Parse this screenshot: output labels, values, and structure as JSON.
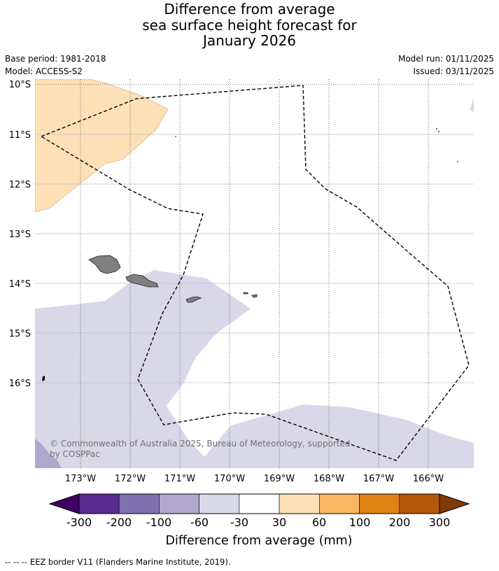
{
  "title": {
    "line1": "Difference from average",
    "line2": "sea surface height forecast for",
    "line3": "January 2026"
  },
  "meta": {
    "base_period": "Base period: 1981-2018",
    "model": "Model: ACCESS-S2",
    "model_run": "Model run: 01/11/2025",
    "issued": "Issued: 03/11/2025"
  },
  "map": {
    "lat_labels": [
      "10°S",
      "11°S",
      "12°S",
      "13°S",
      "14°S",
      "15°S",
      "16°S"
    ],
    "lon_labels": [
      "173°W",
      "172°W",
      "171°W",
      "170°W",
      "169°W",
      "168°W",
      "167°W",
      "166°W"
    ],
    "copyright_line1": "© Commonwealth of Australia 2025, Bureau of Meteorology, supported",
    "copyright_line2": "by COSPPac",
    "colors": {
      "below_60_30": "#d8d8e9",
      "below_100_60": "#b0a7cf",
      "above_60_100": "#fde0b6",
      "land": "#808080",
      "eez": "#000000"
    }
  },
  "colorbar": {
    "tick_labels": [
      "-300",
      "-200",
      "-100",
      "-60",
      "-30",
      "30",
      "60",
      "100",
      "200",
      "300"
    ],
    "label": "Difference from average (mm)",
    "colors": [
      "#3f0067",
      "#5a2a8e",
      "#8072b0",
      "#b0a7cf",
      "#d8d8e9",
      "#ffffff",
      "#fde0b6",
      "#f9b764",
      "#e08214",
      "#b35806",
      "#7f3b08"
    ]
  },
  "footer": {
    "text": "-- -- -- EEZ border V11 (Flanders Marine Institute, 2019)."
  }
}
